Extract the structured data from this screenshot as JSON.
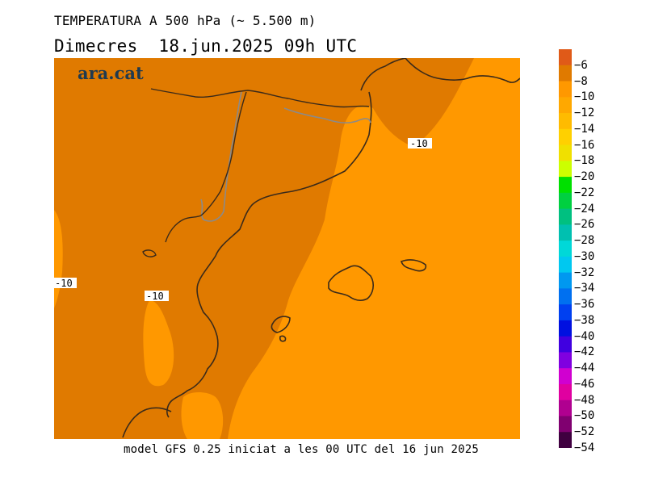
{
  "header": {
    "title": "TEMPERATURA A 500 hPa (~ 5.500 m)",
    "subtitle": "Dimecres  18.jun.2025 09h UTC"
  },
  "logo": {
    "text": "ara.cat"
  },
  "footer": {
    "caption": "model GFS 0.25 iniciat a les 00 UTC del 16 jun 2025"
  },
  "map": {
    "contour_labels": [
      "-10",
      "-10",
      "-10"
    ],
    "colors": {
      "warm_zone": "#e07a00",
      "cool_zone": "#ff9800",
      "coast": "#3a2a1a",
      "border": "#8a8a8a"
    }
  },
  "legend": {
    "labels": [
      "−6",
      "−8",
      "−10",
      "−12",
      "−14",
      "−16",
      "−18",
      "−20",
      "−22",
      "−24",
      "−26",
      "−28",
      "−30",
      "−32",
      "−34",
      "−36",
      "−38",
      "−40",
      "−42",
      "−44",
      "−46",
      "−48",
      "−50",
      "−52",
      "−54"
    ],
    "colors": [
      "#e05a18",
      "#e07a00",
      "#ff9800",
      "#ffa800",
      "#ffbb00",
      "#ffd000",
      "#f0e000",
      "#ccff00",
      "#00e000",
      "#00d040",
      "#00c080",
      "#00c0b0",
      "#00d8d8",
      "#00c8f0",
      "#0098f0",
      "#0070f0",
      "#0040f0",
      "#0010e0",
      "#4000e0",
      "#8000e0",
      "#d000d0",
      "#e000a0",
      "#b00090",
      "#800070",
      "#400040"
    ]
  }
}
